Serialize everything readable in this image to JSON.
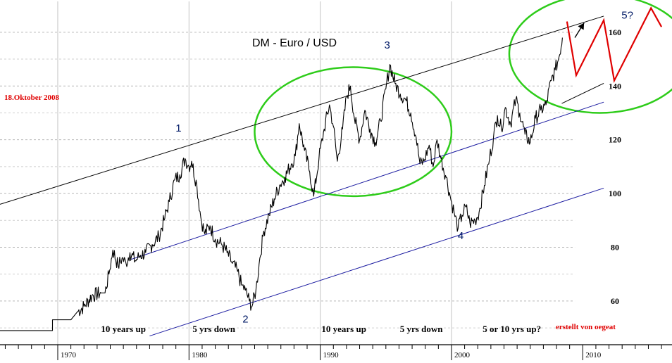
{
  "chart_data": {
    "type": "line",
    "title": "DM - Euro / USD",
    "date_label": "18.Oktober 2008",
    "credit": "erstellt von oegeat",
    "x_ticks": [
      "1970",
      "1980",
      "1990",
      "2000",
      "2010"
    ],
    "y_ticks": [
      "60",
      "80",
      "100",
      "120",
      "140",
      "160"
    ],
    "xlim": [
      1965.6,
      2016.8
    ],
    "ylim": [
      44,
      172
    ],
    "grid": true,
    "series": [
      {
        "points": [
          [
            1965.6,
            49
          ],
          [
            1969.6,
            49
          ],
          [
            1969.6,
            53
          ],
          [
            1971.0,
            53
          ],
          [
            1971.5,
            56
          ],
          [
            1972.0,
            58
          ],
          [
            1972.6,
            62
          ],
          [
            1973.3,
            63
          ],
          [
            1973.6,
            63
          ],
          [
            1973.9,
            70
          ],
          [
            1974.2,
            79
          ],
          [
            1974.6,
            73
          ],
          [
            1974.9,
            76
          ],
          [
            1975.2,
            74
          ],
          [
            1975.5,
            78
          ],
          [
            1975.9,
            75
          ],
          [
            1976.3,
            77
          ],
          [
            1976.7,
            78
          ],
          [
            1977.2,
            81
          ],
          [
            1977.7,
            84
          ],
          [
            1978.1,
            90
          ],
          [
            1978.5,
            97
          ],
          [
            1978.9,
            105
          ],
          [
            1979.3,
            107
          ],
          [
            1979.7,
            113
          ],
          [
            1980.0,
            110
          ],
          [
            1980.2,
            112
          ],
          [
            1980.6,
            103
          ],
          [
            1980.9,
            91
          ],
          [
            1981.2,
            85
          ],
          [
            1981.6,
            88
          ],
          [
            1982.0,
            83
          ],
          [
            1982.5,
            81
          ],
          [
            1982.9,
            78
          ],
          [
            1983.3,
            74
          ],
          [
            1983.7,
            71
          ],
          [
            1984.0,
            66
          ],
          [
            1984.3,
            64
          ],
          [
            1984.6,
            60
          ],
          [
            1984.8,
            58
          ],
          [
            1985.1,
            64
          ],
          [
            1985.4,
            76
          ],
          [
            1985.7,
            86
          ],
          [
            1986.1,
            92
          ],
          [
            1986.5,
            98
          ],
          [
            1986.9,
            103
          ],
          [
            1987.3,
            106
          ],
          [
            1987.8,
            111
          ],
          [
            1988.1,
            114
          ],
          [
            1988.4,
            126
          ],
          [
            1988.8,
            116
          ],
          [
            1989.2,
            108
          ],
          [
            1989.5,
            99
          ],
          [
            1989.9,
            113
          ],
          [
            1990.3,
            124
          ],
          [
            1990.7,
            133
          ],
          [
            1991.0,
            125
          ],
          [
            1991.3,
            112
          ],
          [
            1991.7,
            124
          ],
          [
            1992.0,
            136
          ],
          [
            1992.3,
            140
          ],
          [
            1992.6,
            128
          ],
          [
            1993.0,
            120
          ],
          [
            1993.4,
            131
          ],
          [
            1993.8,
            124
          ],
          [
            1994.2,
            119
          ],
          [
            1994.6,
            127
          ],
          [
            1995.0,
            139
          ],
          [
            1995.3,
            148
          ],
          [
            1995.7,
            141
          ],
          [
            1996.1,
            137
          ],
          [
            1996.5,
            135
          ],
          [
            1996.9,
            130
          ],
          [
            1997.3,
            121
          ],
          [
            1997.6,
            111
          ],
          [
            1997.9,
            112
          ],
          [
            1998.3,
            118
          ],
          [
            1998.6,
            110
          ],
          [
            1998.9,
            120
          ],
          [
            1999.2,
            113
          ],
          [
            1999.6,
            106
          ],
          [
            1999.9,
            99
          ],
          [
            2000.2,
            93
          ],
          [
            2000.5,
            87
          ],
          [
            2000.8,
            92
          ],
          [
            2001.1,
            95
          ],
          [
            2001.4,
            89
          ],
          [
            2001.8,
            90
          ],
          [
            2002.1,
            93
          ],
          [
            2002.5,
            103
          ],
          [
            2002.9,
            113
          ],
          [
            2003.2,
            121
          ],
          [
            2003.5,
            129
          ],
          [
            2003.8,
            124
          ],
          [
            2004.1,
            132
          ],
          [
            2004.5,
            126
          ],
          [
            2004.9,
            135
          ],
          [
            2005.2,
            130
          ],
          [
            2005.6,
            122
          ],
          [
            2006.0,
            119
          ],
          [
            2006.4,
            128
          ],
          [
            2006.8,
            131
          ],
          [
            2007.2,
            133
          ],
          [
            2007.6,
            142
          ],
          [
            2007.9,
            146
          ],
          [
            2008.2,
            151
          ],
          [
            2008.45,
            158
          ]
        ]
      }
    ],
    "annotations": {
      "waves": [
        {
          "label": "1",
          "x": 1979.2,
          "y": 123
        },
        {
          "label": "2",
          "x": 1984.3,
          "y": 52
        },
        {
          "label": "3",
          "x": 1995.1,
          "y": 154
        },
        {
          "label": "4",
          "x": 2000.7,
          "y": 83
        },
        {
          "label": "5?",
          "x": 2013.4,
          "y": 165
        }
      ],
      "phases": [
        {
          "label": "10 years up",
          "x": 1975.0,
          "y": 48.5
        },
        {
          "label": "5 yrs down",
          "x": 1981.9,
          "y": 48.5
        },
        {
          "label": "10 years up",
          "x": 1991.8,
          "y": 48.5
        },
        {
          "label": "5 yrs down",
          "x": 1997.7,
          "y": 48.5
        },
        {
          "label": "5 or 10 yrs up?",
          "x": 2004.6,
          "y": 48.5
        }
      ],
      "channels": [
        {
          "color": "#000000",
          "from": [
            1965.6,
            96
          ],
          "to": [
            2011.6,
            166
          ]
        },
        {
          "color": "#1a1aa0",
          "from": [
            1975.6,
            75.5
          ],
          "to": [
            2011.6,
            134
          ]
        },
        {
          "color": "#000000",
          "from": [
            2008.4,
            133.5
          ],
          "to": [
            2011.6,
            141
          ]
        },
        {
          "color": "#1a1aa0",
          "from": [
            1977.0,
            47
          ],
          "to": [
            2011.6,
            102
          ]
        }
      ],
      "arrow": {
        "from": [
          2009.4,
          158
        ],
        "to": [
          2010.1,
          163.5
        ],
        "color": "#000000"
      },
      "projection": {
        "color": "#e00000",
        "points": [
          [
            2008.8,
            164
          ],
          [
            2009.5,
            144
          ],
          [
            2011.6,
            164.5
          ],
          [
            2012.4,
            142
          ],
          [
            2015.2,
            169
          ],
          [
            2016.0,
            162
          ]
        ]
      },
      "ellipses": [
        {
          "cx": 1992.5,
          "cy": 123,
          "rx": 7.5,
          "ry": 24,
          "color": "#2ecc1a"
        },
        {
          "cx": 2011.3,
          "cy": 152,
          "rx": 6.9,
          "ry": 22,
          "color": "#2ecc1a"
        }
      ]
    }
  }
}
